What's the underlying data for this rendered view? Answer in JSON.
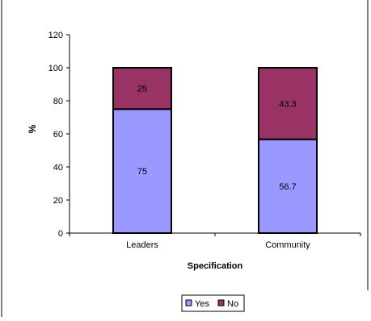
{
  "chart_data": {
    "type": "bar",
    "stacked": true,
    "categories": [
      "Leaders",
      "Community"
    ],
    "series": [
      {
        "name": "Yes",
        "values": [
          75,
          56.7
        ],
        "color": "#9999ff"
      },
      {
        "name": "No",
        "values": [
          25,
          43.3
        ],
        "color": "#993366"
      }
    ],
    "title": "",
    "xlabel": "Specification",
    "ylabel": "%",
    "ylim": [
      0,
      120
    ],
    "yticks": [
      0,
      20,
      40,
      60,
      80,
      100,
      120
    ],
    "grid": false,
    "legend_position": "bottom"
  }
}
